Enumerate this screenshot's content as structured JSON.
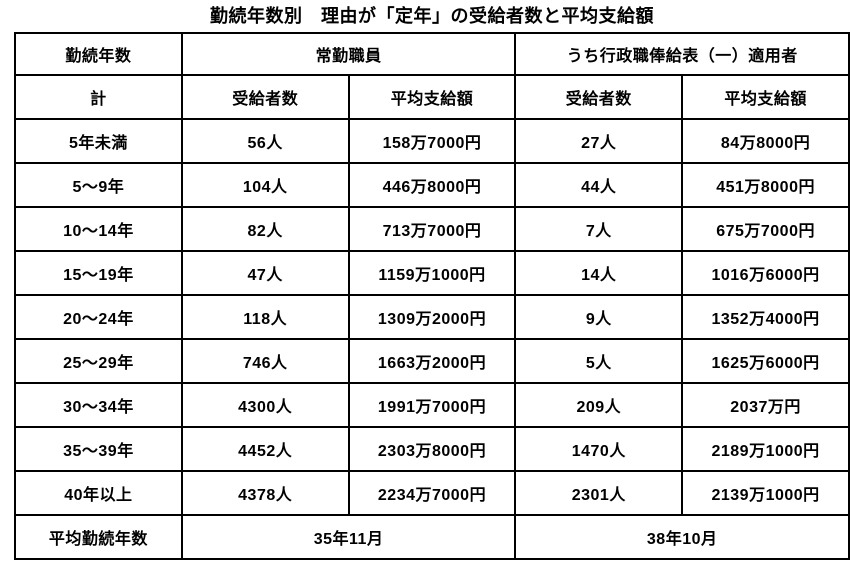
{
  "title": "勤続年数別　理由が「定年」の受給者数と平均支給額",
  "colors": {
    "background": "#ffffff",
    "text": "#000000",
    "border": "#000000"
  },
  "chart_data": {
    "type": "table",
    "title": "勤続年数別　理由が「定年」の受給者数と平均支給額",
    "header": {
      "years": "勤続年数",
      "fulltime_group": "常勤職員",
      "admin_group": "うち行政職俸給表（一）適用者",
      "total": "計",
      "recipients": "受給者数",
      "average": "平均支給額"
    },
    "rows": [
      {
        "label": "5年未満",
        "ft_recipients": "56人",
        "ft_avg": "158万7000円",
        "adm_recipients": "27人",
        "adm_avg": "84万8000円"
      },
      {
        "label": "5〜9年",
        "ft_recipients": "104人",
        "ft_avg": "446万8000円",
        "adm_recipients": "44人",
        "adm_avg": "451万8000円"
      },
      {
        "label": "10〜14年",
        "ft_recipients": "82人",
        "ft_avg": "713万7000円",
        "adm_recipients": "7人",
        "adm_avg": "675万7000円"
      },
      {
        "label": "15〜19年",
        "ft_recipients": "47人",
        "ft_avg": "1159万1000円",
        "adm_recipients": "14人",
        "adm_avg": "1016万6000円"
      },
      {
        "label": "20〜24年",
        "ft_recipients": "118人",
        "ft_avg": "1309万2000円",
        "adm_recipients": "9人",
        "adm_avg": "1352万4000円"
      },
      {
        "label": "25〜29年",
        "ft_recipients": "746人",
        "ft_avg": "1663万2000円",
        "adm_recipients": "5人",
        "adm_avg": "1625万6000円"
      },
      {
        "label": "30〜34年",
        "ft_recipients": "4300人",
        "ft_avg": "1991万7000円",
        "adm_recipients": "209人",
        "adm_avg": "2037万円"
      },
      {
        "label": "35〜39年",
        "ft_recipients": "4452人",
        "ft_avg": "2303万8000円",
        "adm_recipients": "1470人",
        "adm_avg": "2189万1000円"
      },
      {
        "label": "40年以上",
        "ft_recipients": "4378人",
        "ft_avg": "2234万7000円",
        "adm_recipients": "2301人",
        "adm_avg": "2139万1000円"
      }
    ],
    "footer": {
      "label": "平均勤続年数",
      "ft_avg_years": "35年11月",
      "adm_avg_years": "38年10月"
    }
  }
}
